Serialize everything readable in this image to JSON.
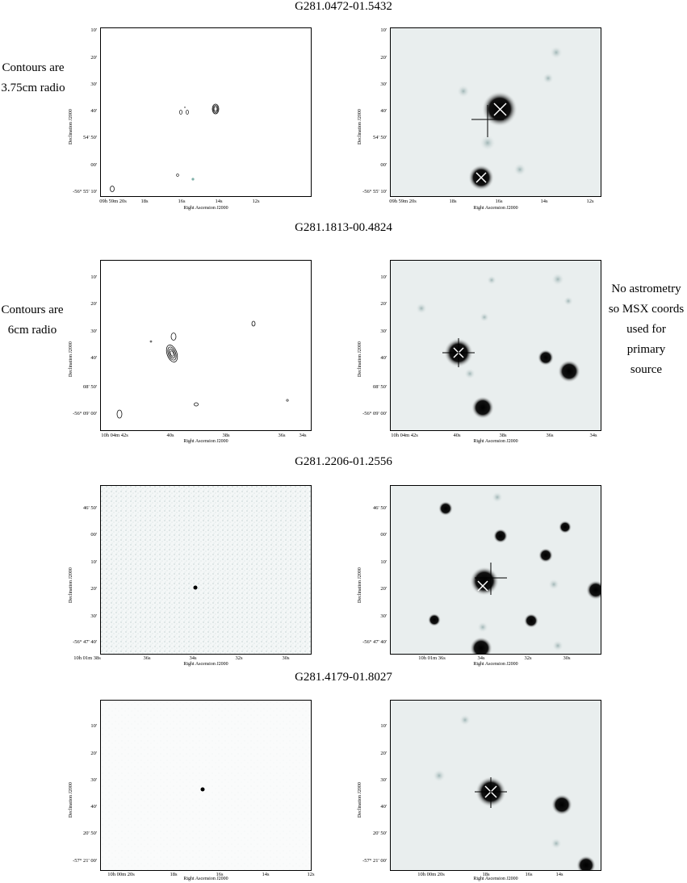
{
  "figure_rows": [
    {
      "title": "G281.0472-01.5432",
      "note": [
        "Contours are",
        "3.75cm radio"
      ],
      "left": {
        "yticks": [
          "10'",
          "20'",
          "30'",
          "40'",
          "54' 50'",
          "00'",
          "-56° 55' 10'"
        ],
        "xticks": [
          "09h 59m 20s",
          "18s",
          "16s",
          "14s",
          "12s"
        ],
        "ylabel": "Declination J2000",
        "xlabel": "Right Ascension J2000"
      },
      "right": {
        "yticks": [
          "10'",
          "20'",
          "30'",
          "40'",
          "54' 50'",
          "00'",
          "-56° 55' 10'"
        ],
        "xticks": [
          "09h 59m 20s",
          "18s",
          "16s",
          "14s",
          "12s"
        ],
        "ylabel": "Declination J2000",
        "xlabel": "Right Ascension J2000"
      }
    },
    {
      "title": "G281.1813-00.4824",
      "note": [
        "Contours are",
        "6cm radio"
      ],
      "right_note": [
        "No astrometry",
        "so MSX coords",
        "used for primary",
        "source"
      ],
      "left": {
        "yticks": [
          "10'",
          "20'",
          "30'",
          "40'",
          "08' 50'",
          "-56° 09' 00'"
        ],
        "xticks": [
          "10h 04m 42s",
          "40s",
          "38s",
          "36s",
          "34s"
        ],
        "ylabel": "Declination J2000",
        "xlabel": "Right Ascension J2000"
      },
      "right": {
        "yticks": [
          "10'",
          "20'",
          "30'",
          "40'",
          "08' 50'",
          "-56° 09' 00'"
        ],
        "xticks": [
          "10h 04m 42s",
          "40s",
          "38s",
          "36s",
          "34s"
        ],
        "ylabel": "Declination J2000",
        "xlabel": "Right Ascension J2000"
      }
    },
    {
      "title": "G281.2206-01.2556",
      "left": {
        "yticks": [
          "46' 50'",
          "00'",
          "10'",
          "20'",
          "30'",
          "-56° 47' 40'"
        ],
        "xticks": [
          "10h 01m 38s",
          "36s",
          "34s",
          "32s",
          "30s"
        ],
        "ylabel": "Declination J2000",
        "xlabel": "Right Ascension J2000"
      },
      "right": {
        "yticks": [
          "46' 50'",
          "00'",
          "10'",
          "20'",
          "30'",
          "-56° 47' 40'"
        ],
        "xticks": [
          "10h 01m 36s",
          "34s",
          "32s",
          "30s"
        ],
        "ylabel": "Declination J2000",
        "xlabel": "Right Ascension J2000"
      }
    },
    {
      "title": "G281.4179-01.8027",
      "left": {
        "yticks": [
          "10'",
          "20'",
          "30'",
          "40'",
          "20' 50'",
          "-57° 21' 00'"
        ],
        "xticks": [
          "10h 00m 20s",
          "18s",
          "16s",
          "14s",
          "12s"
        ],
        "ylabel": "Declination J2000",
        "xlabel": "Right Ascension J2000"
      },
      "right": {
        "yticks": [
          "10'",
          "20'",
          "30'",
          "40'",
          "20' 50'",
          "-57° 21' 00'"
        ],
        "xticks": [
          "10h 00m 20s",
          "18s",
          "16s",
          "14s"
        ],
        "ylabel": "Declination J2000",
        "xlabel": "Right Ascension J2000"
      }
    }
  ]
}
